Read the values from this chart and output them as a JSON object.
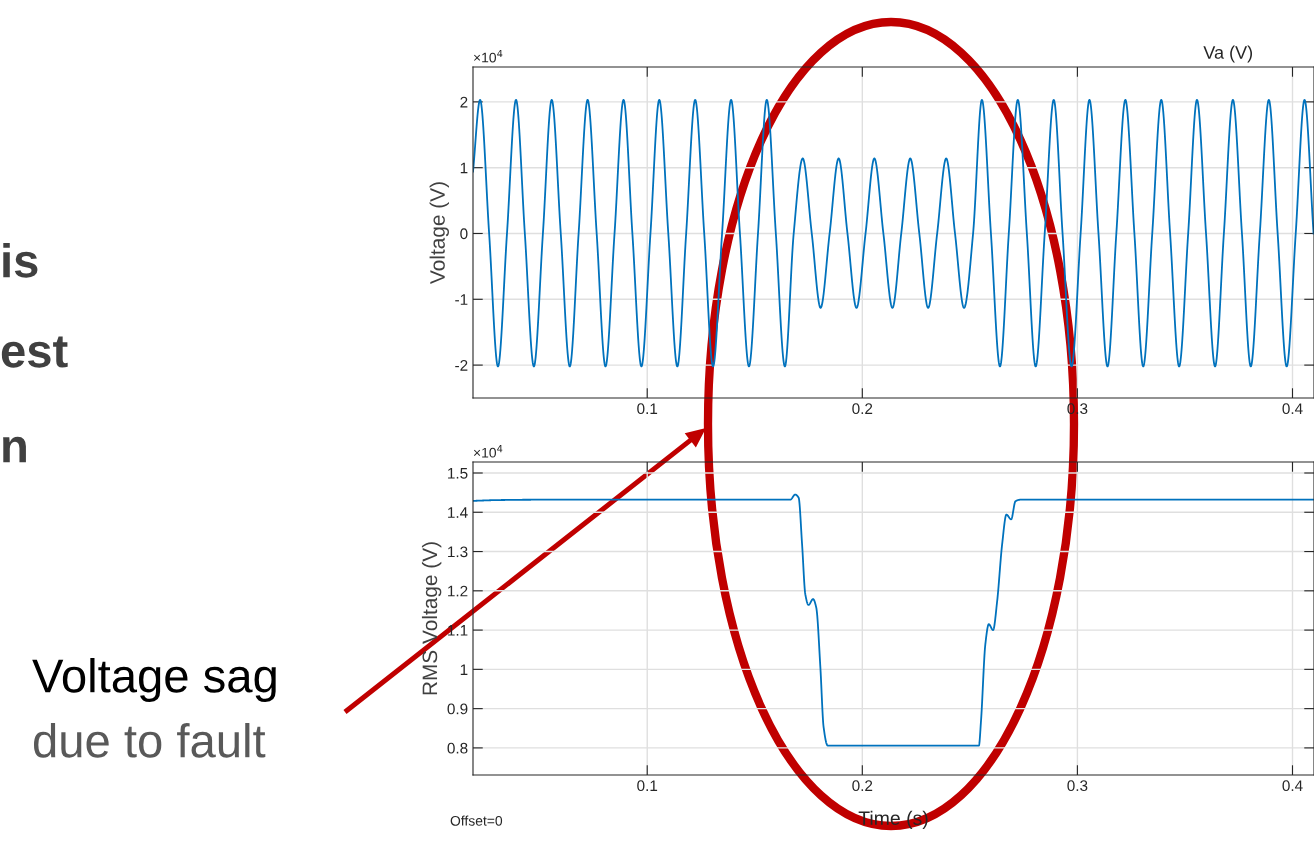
{
  "chart_data": [
    {
      "type": "line",
      "title": "Va (V)",
      "ylabel": "Voltage (V)",
      "x": [
        0.019,
        0.0223,
        0.0265,
        0.0306,
        0.0348,
        0.039,
        0.0431,
        0.0473,
        0.0515,
        0.0556,
        0.0598,
        0.064,
        0.0681,
        0.0723,
        0.0765,
        0.0806,
        0.0848,
        0.089,
        0.0931,
        0.0973,
        0.1015,
        0.1056,
        0.1098,
        0.114,
        0.1181,
        0.1223,
        0.1265,
        0.1306,
        0.1348,
        0.139,
        0.1431,
        0.1473,
        0.1515,
        0.1556,
        0.1598,
        0.164,
        0.1681,
        0.1723,
        0.1765,
        0.1806,
        0.1848,
        0.189,
        0.1931,
        0.1973,
        0.2015,
        0.2056,
        0.2098,
        0.214,
        0.2181,
        0.2223,
        0.2265,
        0.2306,
        0.2348,
        0.239,
        0.2431,
        0.2473,
        0.2515,
        0.2556,
        0.2598,
        0.264,
        0.2681,
        0.2723,
        0.2765,
        0.2806,
        0.2848,
        0.289,
        0.2931,
        0.2973,
        0.3015,
        0.3056,
        0.3098,
        0.314,
        0.3181,
        0.3223,
        0.3265,
        0.3306,
        0.3348,
        0.339,
        0.3431,
        0.3473,
        0.3515,
        0.3556,
        0.3598,
        0.364,
        0.3681,
        0.3723,
        0.3765,
        0.3806,
        0.3848,
        0.389,
        0.3931,
        0.3973,
        0.4015,
        0.4056,
        0.4098
      ],
      "series": [
        {
          "color": "#0072bd",
          "values": [
            0.94,
            2.03,
            0,
            -2.02,
            0,
            2.03,
            0,
            -2.02,
            0,
            2.03,
            0,
            -2.02,
            0,
            2.03,
            0,
            -2.02,
            0,
            2.03,
            0,
            -2.02,
            0,
            2.03,
            0,
            -2.02,
            0,
            2.03,
            0,
            -2.02,
            0,
            2.03,
            0,
            -2.02,
            0,
            2.03,
            0,
            -2.02,
            0,
            1.14,
            0,
            -1.13,
            0,
            1.14,
            0,
            -1.13,
            0,
            1.14,
            0,
            -1.13,
            0,
            1.14,
            0,
            -1.13,
            0,
            1.14,
            0,
            -1.13,
            0,
            2.03,
            0,
            -2.02,
            0,
            2.03,
            0,
            -2.02,
            0,
            2.03,
            0,
            -2.02,
            0,
            2.03,
            0,
            -2.02,
            0,
            2.03,
            0,
            -2.02,
            0,
            2.03,
            0,
            -2.02,
            0,
            2.03,
            0,
            -2.02,
            0,
            2.03,
            0,
            -2.02,
            0,
            2.03,
            0,
            -2.02,
            0,
            2.03,
            0
          ]
        }
      ],
      "xlim": [
        0.019,
        0.41
      ],
      "ylim": [
        -2.5,
        2.53
      ],
      "xticks": [
        0.1,
        0.2,
        0.3,
        0.4
      ],
      "yticks": [
        -2,
        -1,
        0,
        1,
        2
      ],
      "grid": true,
      "annotations": [
        "×10$^{4}$",
        "is",
        "est",
        "n"
      ]
    },
    {
      "type": "line",
      "xlabel": "Time (s)",
      "ylabel": "RMS Voltage (V)",
      "x": [
        0.019,
        0.03,
        0.05,
        0.1665,
        0.1688,
        0.1704,
        0.172,
        0.1735,
        0.175,
        0.1771,
        0.1786,
        0.1805,
        0.182,
        0.1839,
        0.2542,
        0.2552,
        0.2572,
        0.2588,
        0.2608,
        0.2627,
        0.265,
        0.267,
        0.2692,
        0.2712,
        0.2735,
        0.41
      ],
      "series": [
        {
          "color": "#0072bd",
          "values": [
            1.429,
            1.431,
            1.432,
            1.432,
            1.445,
            1.437,
            1.318,
            1.191,
            1.164,
            1.179,
            1.157,
            1.005,
            0.853,
            0.806,
            0.806,
            0.87,
            1.064,
            1.115,
            1.1,
            1.174,
            1.318,
            1.394,
            1.382,
            1.428,
            1.432,
            1.432
          ]
        }
      ],
      "xlim": [
        0.019,
        0.41
      ],
      "ylim": [
        0.731,
        1.528
      ],
      "xticks": [
        0.1,
        0.2,
        0.3,
        0.4
      ],
      "yticks": [
        0.8,
        0.9,
        1,
        1.1,
        1.2,
        1.3,
        1.4,
        1.5
      ],
      "grid": true,
      "annotations": [
        "×10$^{4}$",
        "Offset=0",
        "Voltage sag",
        "due to fault"
      ]
    }
  ]
}
